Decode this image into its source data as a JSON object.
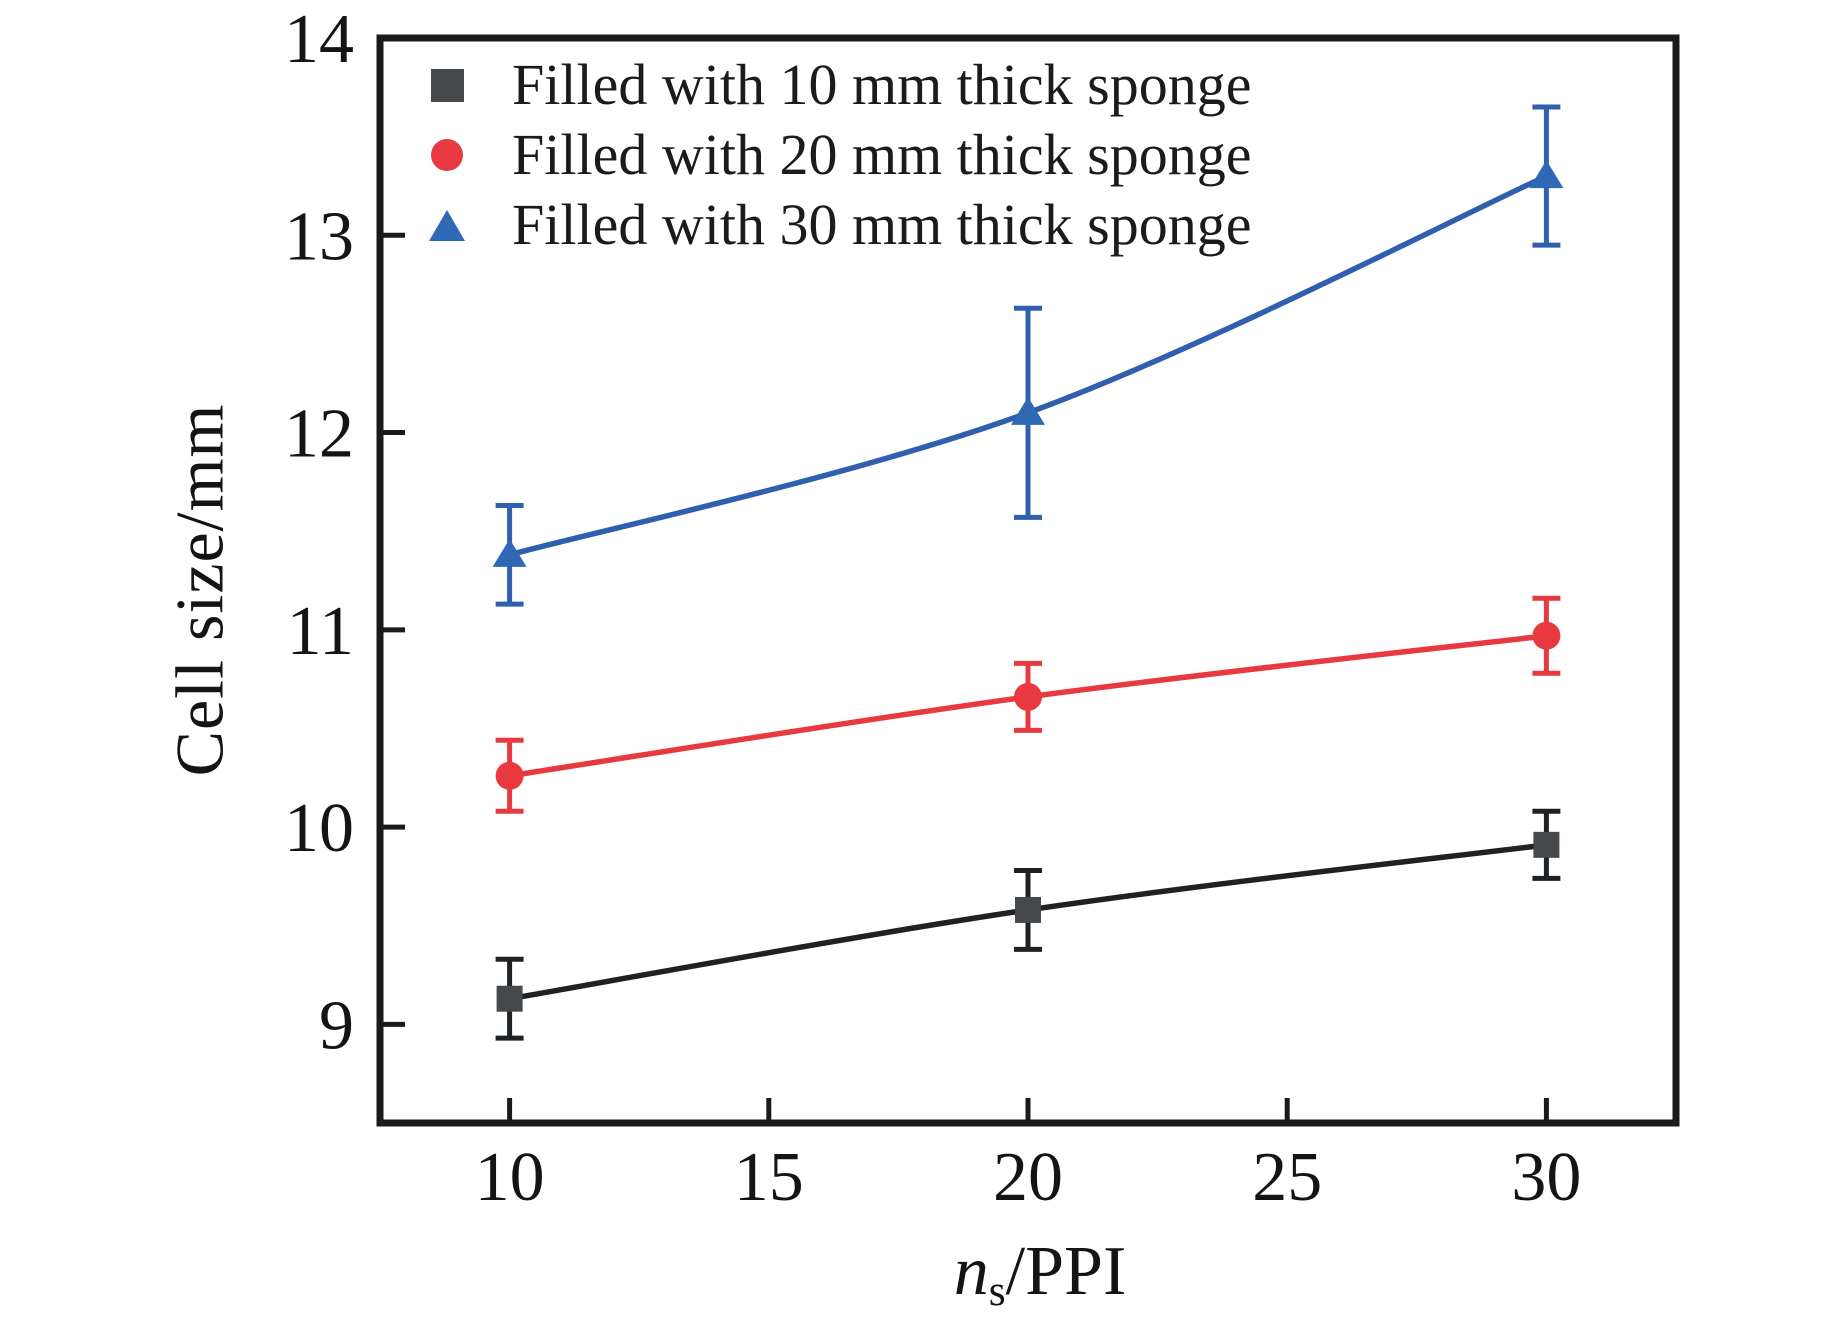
{
  "figure": {
    "background": "#ffffff"
  },
  "chart_data": {
    "type": "line",
    "title": "",
    "ylabel": "Cell size/mm",
    "xlabel": {
      "var": "n",
      "sub": "s",
      "rest": "/PPI"
    },
    "x": [
      10,
      20,
      30
    ],
    "xlim": [
      7.5,
      32.5
    ],
    "ylim": [
      8.5,
      14
    ],
    "xticks": [
      10,
      15,
      20,
      25,
      30
    ],
    "yticks": [
      9,
      10,
      11,
      12,
      13,
      14
    ],
    "grid": false,
    "legend_position": "top-left-inside",
    "frame_color": "#1a1a1a",
    "series": [
      {
        "name": "Filled with 10 mm thick sponge",
        "marker": "square",
        "marker_color": "#46494c",
        "line_color": "#1f2224",
        "values": [
          9.13,
          9.58,
          9.91
        ],
        "errors": [
          0.2,
          0.2,
          0.17
        ]
      },
      {
        "name": "Filled with 20 mm thick sponge",
        "marker": "circle",
        "marker_color": "#e83840",
        "line_color": "#e83840",
        "values": [
          10.26,
          10.66,
          10.97
        ],
        "errors": [
          0.18,
          0.17,
          0.19
        ]
      },
      {
        "name": "Filled with 30 mm thick sponge",
        "marker": "triangle",
        "marker_color": "#2f68b4",
        "line_color": "#2f5fae",
        "values": [
          11.38,
          12.1,
          13.3
        ],
        "errors": [
          0.25,
          0.53,
          0.35
        ]
      }
    ]
  }
}
